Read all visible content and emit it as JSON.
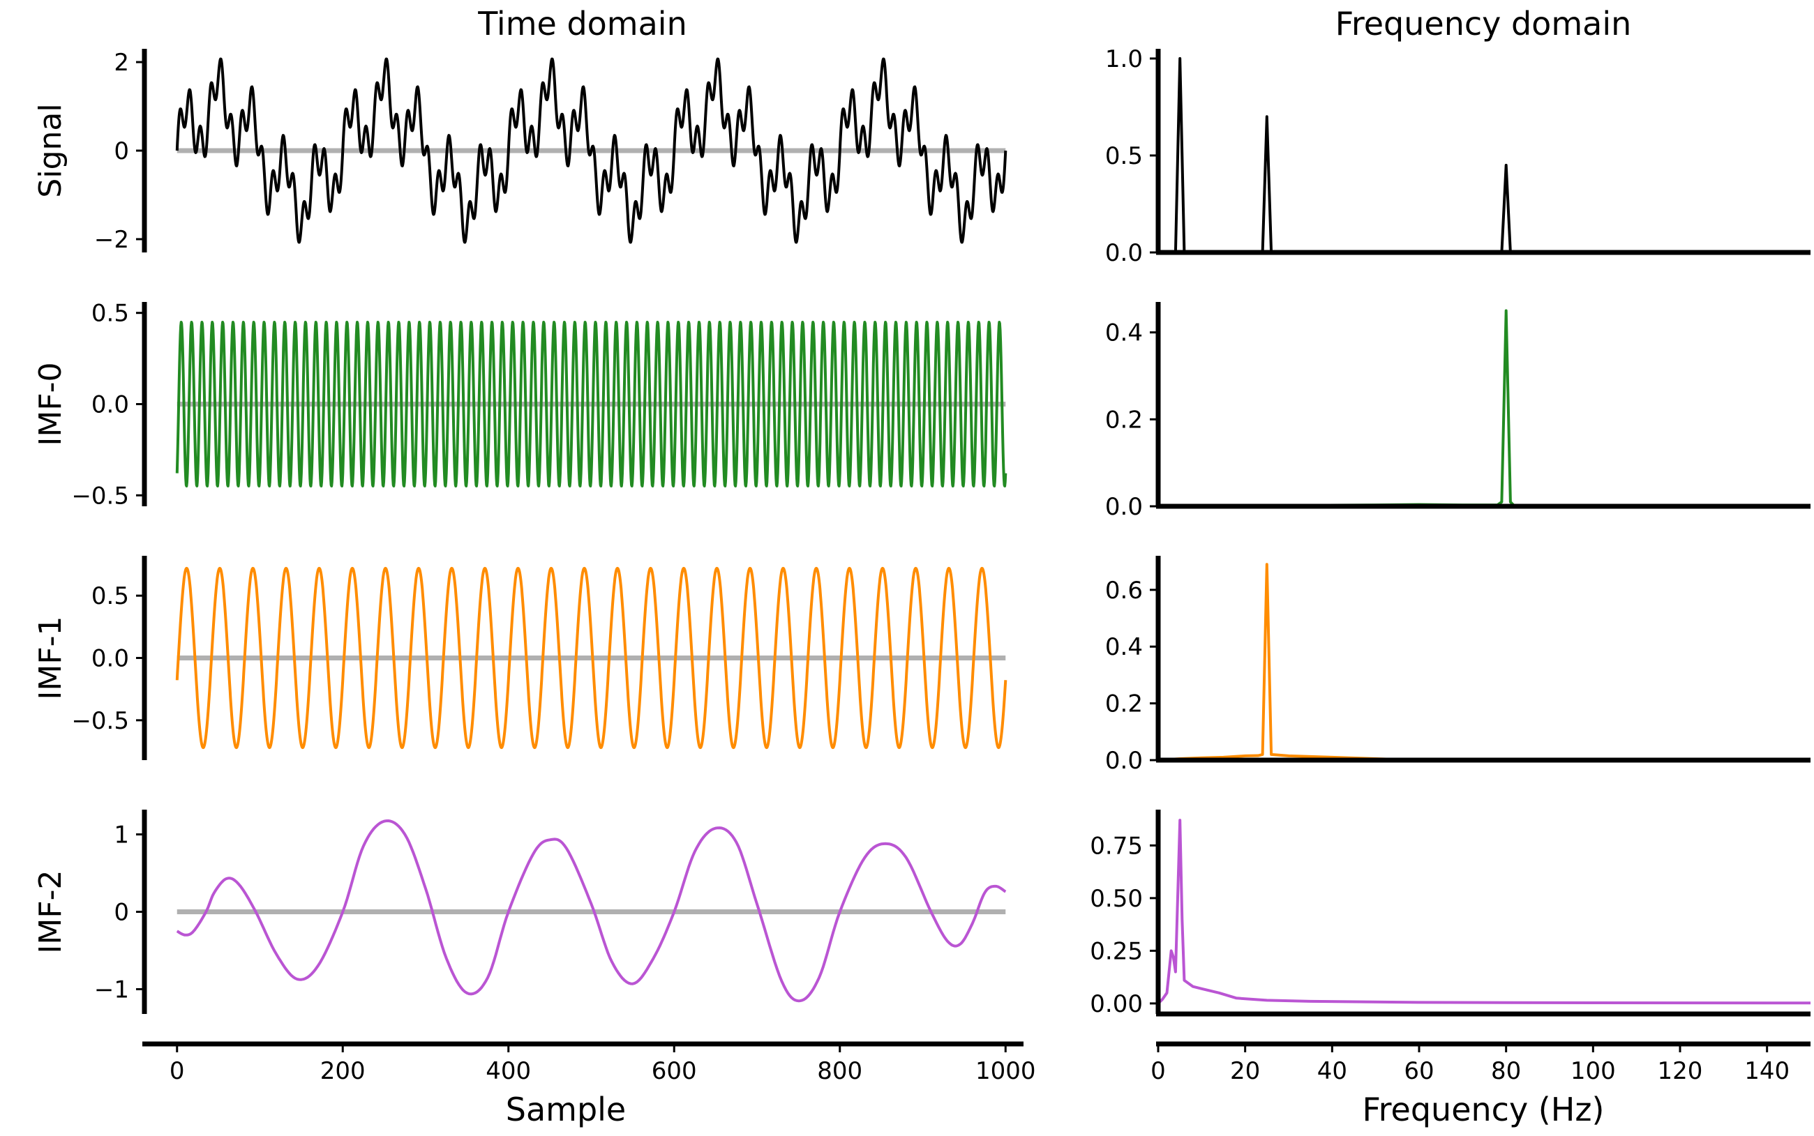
{
  "figure": {
    "titles": {
      "left": "Time domain",
      "right": "Frequency domain"
    },
    "xlabels": {
      "time": "Sample",
      "freq": "Frequency (Hz)"
    }
  },
  "chart_data": [
    {
      "type": "line",
      "panel": "time",
      "row_label": "Signal",
      "color": "#000000",
      "zero_line": true,
      "xlim": [
        -20,
        1020
      ],
      "ylim": [
        -2.3,
        2.3
      ],
      "yticks": [
        -2,
        0,
        2
      ],
      "ytick_labels": [
        "−2",
        "0",
        "2"
      ],
      "signal": {
        "x_start": 0,
        "x_end": 1000,
        "components": [
          {
            "amplitude": 1.0,
            "cycles_per_sample": 0.005,
            "phase": 0
          },
          {
            "amplitude": 0.7,
            "cycles_per_sample": 0.025,
            "phase": 0
          },
          {
            "amplitude": 0.45,
            "cycles_per_sample": 0.08,
            "phase": 0
          }
        ]
      }
    },
    {
      "type": "line",
      "panel": "time",
      "row_label": "IMF-0",
      "color": "#228B22",
      "zero_line": true,
      "xlim": [
        -20,
        1020
      ],
      "ylim": [
        -0.56,
        0.56
      ],
      "yticks": [
        -0.5,
        0.0,
        0.5
      ],
      "ytick_labels": [
        "−0.5",
        "0.0",
        "0.5"
      ],
      "signal": {
        "x_start": 0,
        "x_end": 1000,
        "components": [
          {
            "amplitude": 0.45,
            "cycles_per_sample": 0.08,
            "phase": -1.0
          }
        ]
      }
    },
    {
      "type": "line",
      "panel": "time",
      "row_label": "IMF-1",
      "color": "#FF8C00",
      "zero_line": true,
      "xlim": [
        -20,
        1020
      ],
      "ylim": [
        -0.82,
        0.82
      ],
      "yticks": [
        -0.5,
        0.0,
        0.5
      ],
      "ytick_labels": [
        "−0.5",
        "0.0",
        "0.5"
      ],
      "signal": {
        "x_start": 0,
        "x_end": 1000,
        "components": [
          {
            "amplitude": 0.72,
            "cycles_per_sample": 0.025,
            "phase": -0.25
          }
        ]
      }
    },
    {
      "type": "line",
      "panel": "time",
      "row_label": "IMF-2",
      "color": "#BA55D3",
      "zero_line": true,
      "xlim": [
        -20,
        1020
      ],
      "ylim": [
        -1.32,
        1.32
      ],
      "yticks": [
        -1,
        0,
        1
      ],
      "ytick_labels": [
        "−1",
        "0",
        "1"
      ],
      "xticks": [
        0,
        200,
        400,
        600,
        800,
        1000
      ],
      "xtick_labels": [
        "0",
        "200",
        "400",
        "600",
        "800",
        "1000"
      ],
      "points": [
        [
          0,
          -0.25
        ],
        [
          10,
          -0.3
        ],
        [
          20,
          -0.25
        ],
        [
          35,
          0.0
        ],
        [
          45,
          0.25
        ],
        [
          60,
          0.43
        ],
        [
          75,
          0.35
        ],
        [
          95,
          0.0
        ],
        [
          120,
          -0.55
        ],
        [
          145,
          -0.87
        ],
        [
          170,
          -0.7
        ],
        [
          200,
          0.0
        ],
        [
          225,
          0.85
        ],
        [
          250,
          1.17
        ],
        [
          275,
          1.0
        ],
        [
          300,
          0.3
        ],
        [
          325,
          -0.6
        ],
        [
          350,
          -1.05
        ],
        [
          375,
          -0.85
        ],
        [
          400,
          0.0
        ],
        [
          430,
          0.75
        ],
        [
          450,
          0.93
        ],
        [
          470,
          0.82
        ],
        [
          500,
          0.1
        ],
        [
          525,
          -0.65
        ],
        [
          550,
          -0.93
        ],
        [
          575,
          -0.6
        ],
        [
          600,
          0.0
        ],
        [
          625,
          0.78
        ],
        [
          650,
          1.08
        ],
        [
          675,
          0.9
        ],
        [
          700,
          0.1
        ],
        [
          730,
          -0.9
        ],
        [
          752,
          -1.15
        ],
        [
          775,
          -0.85
        ],
        [
          800,
          0.0
        ],
        [
          830,
          0.7
        ],
        [
          855,
          0.88
        ],
        [
          880,
          0.7
        ],
        [
          910,
          0.0
        ],
        [
          930,
          -0.38
        ],
        [
          945,
          -0.42
        ],
        [
          960,
          -0.15
        ],
        [
          975,
          0.25
        ],
        [
          988,
          0.33
        ],
        [
          1000,
          0.26
        ]
      ]
    },
    {
      "type": "line",
      "panel": "freq",
      "row_label": "Signal",
      "color": "#000000",
      "xlim": [
        0,
        150
      ],
      "ylim": [
        0,
        1.05
      ],
      "yticks": [
        0.0,
        0.5,
        1.0
      ],
      "ytick_labels": [
        "0.0",
        "0.5",
        "1.0"
      ],
      "points": [
        [
          0,
          0
        ],
        [
          4,
          0
        ],
        [
          5,
          1.0
        ],
        [
          6,
          0
        ],
        [
          24,
          0
        ],
        [
          25,
          0.7
        ],
        [
          26,
          0
        ],
        [
          79,
          0
        ],
        [
          80,
          0.45
        ],
        [
          81,
          0
        ],
        [
          150,
          0
        ]
      ]
    },
    {
      "type": "line",
      "panel": "freq",
      "row_label": "IMF-0",
      "color": "#228B22",
      "xlim": [
        0,
        150
      ],
      "ylim": [
        0,
        0.47
      ],
      "yticks": [
        0.0,
        0.2,
        0.4
      ],
      "ytick_labels": [
        "0.0",
        "0.2",
        "0.4"
      ],
      "points": [
        [
          0,
          0
        ],
        [
          50,
          0.003
        ],
        [
          60,
          0.004
        ],
        [
          70,
          0.003
        ],
        [
          78,
          0.003
        ],
        [
          79,
          0.01
        ],
        [
          80,
          0.45
        ],
        [
          81,
          0.01
        ],
        [
          82,
          0
        ],
        [
          150,
          0
        ]
      ]
    },
    {
      "type": "line",
      "panel": "freq",
      "row_label": "IMF-1",
      "color": "#FF8C00",
      "xlim": [
        0,
        150
      ],
      "ylim": [
        0,
        0.72
      ],
      "yticks": [
        0.0,
        0.2,
        0.4,
        0.6
      ],
      "ytick_labels": [
        "0.0",
        "0.2",
        "0.4",
        "0.6"
      ],
      "points": [
        [
          0,
          0
        ],
        [
          5,
          0.005
        ],
        [
          10,
          0.008
        ],
        [
          15,
          0.01
        ],
        [
          20,
          0.015
        ],
        [
          23,
          0.016
        ],
        [
          24,
          0.02
        ],
        [
          25,
          0.69
        ],
        [
          26,
          0.02
        ],
        [
          30,
          0.015
        ],
        [
          40,
          0.01
        ],
        [
          50,
          0.005
        ],
        [
          60,
          0
        ],
        [
          150,
          0
        ]
      ]
    },
    {
      "type": "line",
      "panel": "freq",
      "row_label": "IMF-2",
      "color": "#BA55D3",
      "xlim": [
        0,
        150
      ],
      "ylim": [
        -0.05,
        0.92
      ],
      "yticks": [
        0.0,
        0.25,
        0.5,
        0.75
      ],
      "ytick_labels": [
        "0.00",
        "0.25",
        "0.50",
        "0.75"
      ],
      "xticks": [
        0,
        20,
        40,
        60,
        80,
        100,
        120,
        140
      ],
      "xtick_labels": [
        "0",
        "20",
        "40",
        "60",
        "80",
        "100",
        "120",
        "140"
      ],
      "points": [
        [
          0,
          0
        ],
        [
          1,
          0.02
        ],
        [
          2,
          0.05
        ],
        [
          3,
          0.25
        ],
        [
          3.5,
          0.22
        ],
        [
          4,
          0.15
        ],
        [
          5,
          0.87
        ],
        [
          5.5,
          0.4
        ],
        [
          6,
          0.11
        ],
        [
          8,
          0.08
        ],
        [
          10,
          0.07
        ],
        [
          14,
          0.05
        ],
        [
          18,
          0.025
        ],
        [
          25,
          0.015
        ],
        [
          35,
          0.01
        ],
        [
          60,
          0.005
        ],
        [
          100,
          0.003
        ],
        [
          150,
          0.002
        ]
      ]
    }
  ]
}
